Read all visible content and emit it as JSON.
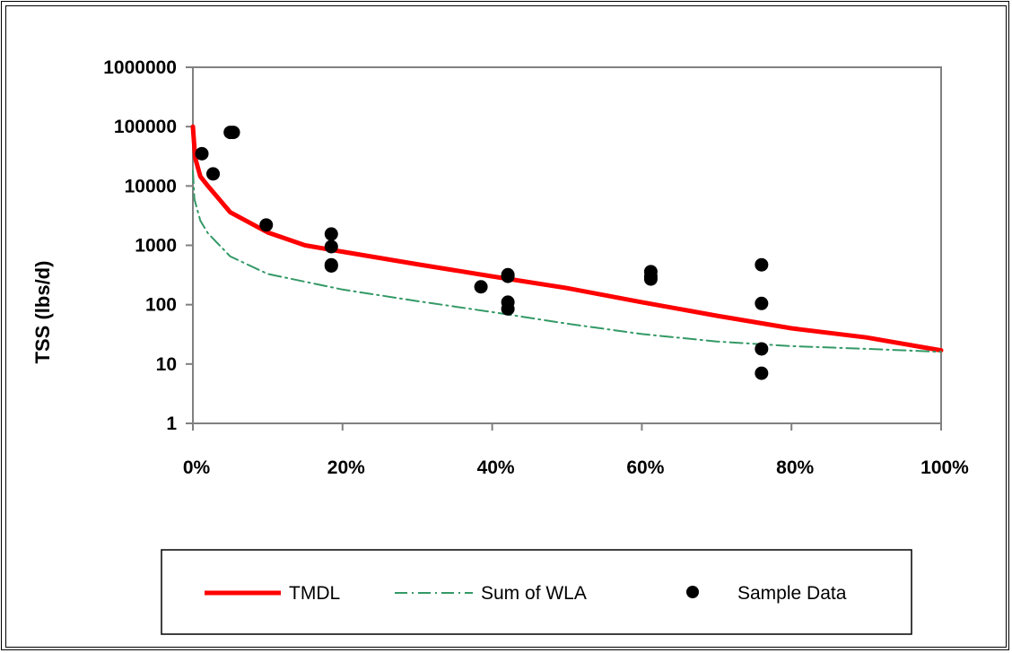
{
  "chart_data": {
    "type": "line",
    "title": "",
    "xlabel": "",
    "ylabel": "TSS (lbs/d)",
    "x_scale": "linear",
    "y_scale": "log",
    "xlim": [
      0,
      1
    ],
    "ylim": [
      1,
      1000000
    ],
    "x_ticks": [
      0,
      0.2,
      0.4,
      0.6,
      0.8,
      1.0
    ],
    "x_tick_labels": [
      "0%",
      "20%",
      "40%",
      "60%",
      "80%",
      "100%"
    ],
    "y_ticks": [
      1,
      10,
      100,
      1000,
      10000,
      100000,
      1000000
    ],
    "y_tick_labels": [
      "1",
      "10",
      "100",
      "1000",
      "10000",
      "100000",
      "1000000"
    ],
    "grid": false,
    "legend_position": "bottom",
    "series": [
      {
        "name": "TMDL",
        "kind": "line",
        "style": "solid",
        "color": "#ff0000",
        "x": [
          0,
          0.003,
          0.01,
          0.02,
          0.05,
          0.1,
          0.15,
          0.2,
          0.3,
          0.4,
          0.5,
          0.6,
          0.7,
          0.8,
          0.9,
          1.0
        ],
        "y": [
          100000,
          30000,
          14500,
          10000,
          3600,
          1650,
          1000,
          780,
          480,
          300,
          190,
          110,
          65,
          40,
          28,
          17
        ]
      },
      {
        "name": "Sum of WLA",
        "kind": "line",
        "style": "dash-dot",
        "color": "#339966",
        "x": [
          0,
          0.002,
          0.01,
          0.02,
          0.05,
          0.1,
          0.2,
          0.3,
          0.4,
          0.5,
          0.6,
          0.7,
          0.8,
          0.9,
          1.0
        ],
        "y": [
          18000,
          6000,
          2600,
          1600,
          650,
          330,
          180,
          115,
          75,
          48,
          32,
          24,
          20,
          18,
          16
        ]
      },
      {
        "name": "Sample Data",
        "kind": "scatter",
        "color": "#000000",
        "x": [
          0.012,
          0.027,
          0.05,
          0.054,
          0.098,
          0.185,
          0.185,
          0.185,
          0.185,
          0.385,
          0.421,
          0.421,
          0.421,
          0.421,
          0.612,
          0.612,
          0.612,
          0.76,
          0.76,
          0.76,
          0.76
        ],
        "y": [
          35000,
          16000,
          80000,
          80000,
          2200,
          1550,
          950,
          470,
          450,
          200,
          300,
          110,
          85,
          320,
          360,
          300,
          270,
          470,
          105,
          18,
          7
        ]
      }
    ]
  }
}
